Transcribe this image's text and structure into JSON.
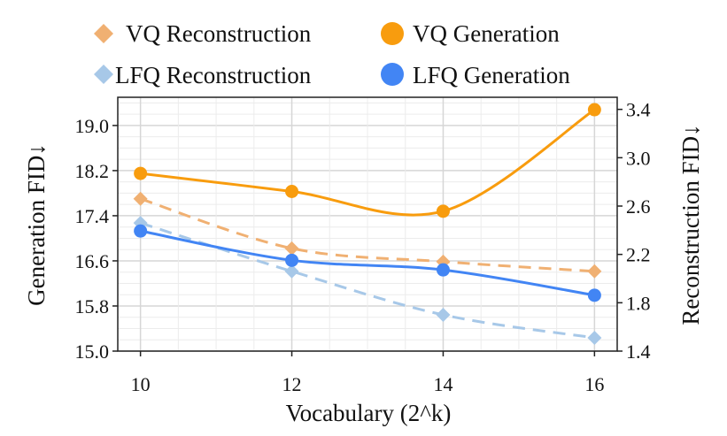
{
  "chart_data": {
    "type": "line",
    "x": [
      10,
      12,
      14,
      16
    ],
    "xlabel": "Vocabulary (2^k)",
    "ylabel_left": "Generation FID↓",
    "ylabel_right": "Reconstruction FID↓",
    "ylim_left": [
      15.0,
      19.5
    ],
    "ylim_right": [
      1.4,
      3.5
    ],
    "xlim": [
      9.7,
      16.3
    ],
    "yticks_left": [
      "15.0",
      "15.8",
      "16.6",
      "17.4",
      "18.2",
      "19.0"
    ],
    "yticks_right": [
      "1.4",
      "1.8",
      "2.2",
      "2.6",
      "3.0",
      "3.4"
    ],
    "xticks": [
      "10",
      "12",
      "14",
      "16"
    ],
    "grid": true,
    "legend_position": "top",
    "series": [
      {
        "name": "VQ Reconstruction",
        "axis": "right",
        "style": "dashed",
        "marker": "diamond",
        "color": "#f0b072",
        "values": [
          2.66,
          2.25,
          2.14,
          2.06
        ]
      },
      {
        "name": "VQ Generation",
        "axis": "left",
        "style": "solid",
        "marker": "circle",
        "color": "#f89c0e",
        "values": [
          18.15,
          17.83,
          17.48,
          19.28
        ]
      },
      {
        "name": "LFQ Reconstruction",
        "axis": "right",
        "style": "dashed",
        "marker": "diamond",
        "color": "#a7c8e8",
        "values": [
          2.46,
          2.06,
          1.7,
          1.51
        ]
      },
      {
        "name": "LFQ Generation",
        "axis": "left",
        "style": "solid",
        "marker": "circle",
        "color": "#4285f4",
        "values": [
          17.13,
          16.61,
          16.44,
          15.99
        ]
      }
    ]
  }
}
